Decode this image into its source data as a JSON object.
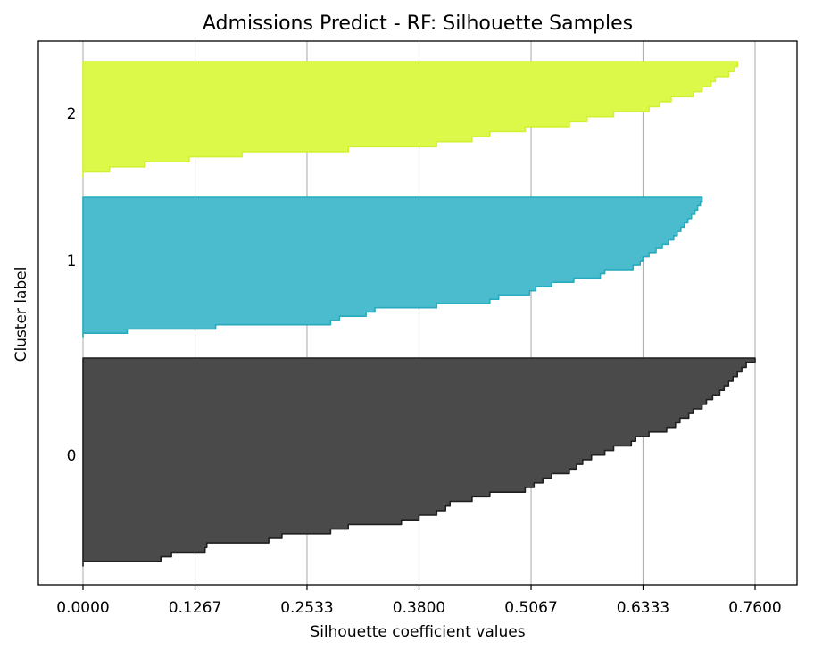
{
  "chart_data": {
    "type": "area",
    "title": "Admissions Predict - RF: Silhouette Samples",
    "xlabel": "Silhouette coefficient values",
    "ylabel": "Cluster label",
    "xlim": [
      -0.05,
      0.81
    ],
    "x_ticks": [
      0,
      0.1267,
      0.2533,
      0.38,
      0.5067,
      0.6333,
      0.76
    ],
    "x_tick_labels": [
      "0.0000",
      "0.1267",
      "0.2533",
      "0.3800",
      "0.5067",
      "0.6333",
      "0.7600"
    ],
    "grid": "vertical",
    "series": [
      {
        "name": "0",
        "color": "#4a4a4a",
        "edge_color": "#1f1f1f",
        "values": [
          0.76,
          0.75,
          0.745,
          0.74,
          0.735,
          0.73,
          0.725,
          0.72,
          0.712,
          0.705,
          0.7,
          0.69,
          0.685,
          0.675,
          0.67,
          0.66,
          0.64,
          0.625,
          0.62,
          0.6,
          0.59,
          0.575,
          0.565,
          0.558,
          0.55,
          0.53,
          0.52,
          0.51,
          0.5,
          0.46,
          0.44,
          0.415,
          0.41,
          0.4,
          0.38,
          0.36,
          0.3,
          0.28,
          0.225,
          0.21,
          0.14,
          0.138,
          0.1,
          0.088,
          0.0
        ],
        "ticks_label": "0"
      },
      {
        "name": "1",
        "color": "#4bbccd",
        "edge_color": "#27aabd",
        "values": [
          0.7,
          0.698,
          0.695,
          0.692,
          0.688,
          0.684,
          0.68,
          0.676,
          0.672,
          0.668,
          0.662,
          0.655,
          0.648,
          0.64,
          0.633,
          0.63,
          0.622,
          0.59,
          0.585,
          0.555,
          0.53,
          0.512,
          0.505,
          0.47,
          0.46,
          0.4,
          0.33,
          0.32,
          0.29,
          0.28,
          0.15,
          0.05,
          0.0
        ],
        "ticks_label": "1"
      },
      {
        "name": "2",
        "color": "#dcf94a",
        "edge_color": "#d2f032",
        "values": [
          0.74,
          0.737,
          0.73,
          0.715,
          0.71,
          0.7,
          0.69,
          0.665,
          0.652,
          0.64,
          0.6,
          0.57,
          0.55,
          0.5,
          0.46,
          0.44,
          0.4,
          0.3,
          0.18,
          0.12,
          0.07,
          0.03,
          0.0
        ],
        "ticks_label": "2"
      }
    ],
    "y_tick_labels": [
      "0",
      "1",
      "2"
    ]
  }
}
